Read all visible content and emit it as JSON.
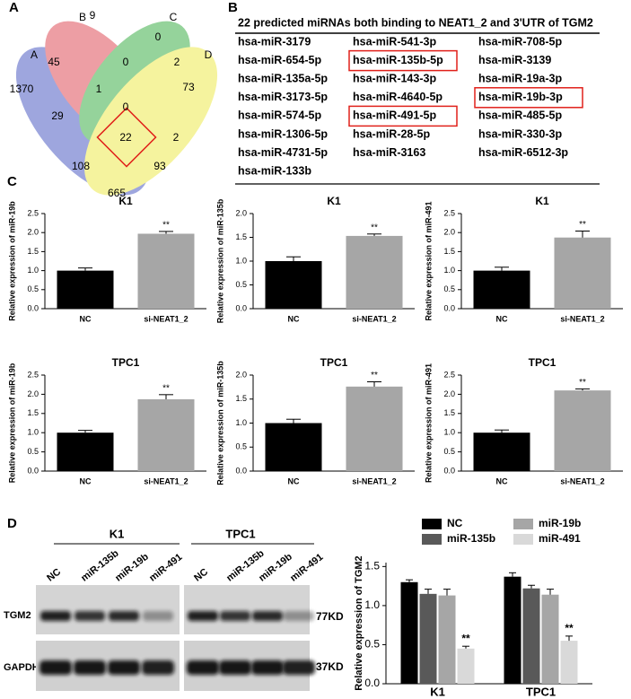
{
  "panel_labels": [
    "A",
    "B",
    "C",
    "D"
  ],
  "venn": {
    "sets": [
      "A",
      "B",
      "C",
      "D"
    ],
    "regions": [
      9,
      0,
      45,
      0,
      2,
      1370,
      1,
      0,
      73,
      29,
      22,
      2,
      108,
      93,
      665
    ]
  },
  "table": {
    "title": "22 predicted miRNAs both binding to  NEAT1_2 and 3'UTR of TGM2",
    "rows": [
      [
        "hsa-miR-3179",
        "hsa-miR-541-3p",
        "hsa-miR-708-5p"
      ],
      [
        "hsa-miR-654-5p",
        "hsa-miR-135b-5p",
        "hsa-miR-3139"
      ],
      [
        "hsa-miR-135a-5p",
        "hsa-miR-143-3p",
        "hsa-miR-19a-3p"
      ],
      [
        "hsa-miR-3173-5p",
        "hsa-miR-4640-5p",
        "hsa-miR-19b-3p"
      ],
      [
        "hsa-miR-574-5p",
        "hsa-miR-491-5p",
        "hsa-miR-485-5p"
      ],
      [
        "hsa-miR-1306-5p",
        "hsa-miR-28-5p",
        "hsa-miR-330-3p"
      ],
      [
        "hsa-miR-4731-5p",
        "hsa-miR-3163",
        "hsa-miR-6512-3p"
      ],
      [
        "hsa-miR-133b"
      ]
    ]
  },
  "blot": {
    "groups": [
      "K1",
      "TPC1"
    ],
    "lanes": [
      "NC",
      "miR-135b",
      "miR-19b",
      "miR-491"
    ],
    "proteins": [
      "TGM2",
      "GAPDH"
    ],
    "sizes": [
      "77KD",
      "37KD"
    ]
  },
  "chart_data": [
    {
      "type": "bar",
      "title": "K1",
      "ylabel": "Relative expression of miR-19b",
      "categories": [
        "NC",
        "si-NEAT1_2"
      ],
      "values": [
        1.0,
        1.97
      ],
      "errors": [
        0.07,
        0.06
      ],
      "significance": [
        null,
        "**"
      ],
      "colors": [
        "#000000",
        "#a6a6a6"
      ],
      "ylim": [
        0,
        2.5
      ],
      "yticks": [
        {
          "value": 0,
          "label": "0.0"
        },
        0.5,
        {
          "value": 1,
          "label": "1.0"
        },
        1.5,
        {
          "value": 2,
          "label": "2.0"
        },
        2.5
      ]
    },
    {
      "type": "bar",
      "title": "K1",
      "ylabel": "Relative expression of miR-135b",
      "categories": [
        "NC",
        "si-NEAT1_2"
      ],
      "values": [
        1.0,
        1.53
      ],
      "errors": [
        0.09,
        0.04
      ],
      "significance": [
        null,
        "**"
      ],
      "colors": [
        "#000000",
        "#a6a6a6"
      ],
      "ylim": [
        0,
        2
      ],
      "yticks": [
        {
          "value": 0,
          "label": "0.0"
        },
        0.5,
        {
          "value": 1,
          "label": "1.0"
        },
        1.5,
        {
          "value": 2,
          "label": "2.0"
        }
      ]
    },
    {
      "type": "bar",
      "title": "K1",
      "ylabel": "Relative expression of miR-491",
      "categories": [
        "NC",
        "si-NEAT1_2"
      ],
      "values": [
        1.0,
        1.87
      ],
      "errors": [
        0.09,
        0.17
      ],
      "significance": [
        null,
        "**"
      ],
      "colors": [
        "#000000",
        "#a6a6a6"
      ],
      "ylim": [
        0,
        2.5
      ],
      "yticks": [
        {
          "value": 0,
          "label": "0.0"
        },
        0.5,
        {
          "value": 1,
          "label": "1.0"
        },
        1.5,
        {
          "value": 2,
          "label": "2.0"
        },
        2.5
      ]
    },
    {
      "type": "bar",
      "title": "TPC1",
      "ylabel": "Relative expression of miR-19b",
      "categories": [
        "NC",
        "si-NEAT1_2"
      ],
      "values": [
        1.0,
        1.87
      ],
      "errors": [
        0.06,
        0.12
      ],
      "significance": [
        null,
        "**"
      ],
      "colors": [
        "#000000",
        "#a6a6a6"
      ],
      "ylim": [
        0,
        2.5
      ],
      "yticks": [
        {
          "value": 0,
          "label": "0.0"
        },
        0.5,
        {
          "value": 1,
          "label": "1.0"
        },
        1.5,
        {
          "value": 2,
          "label": "2.0"
        },
        2.5
      ]
    },
    {
      "type": "bar",
      "title": "TPC1",
      "ylabel": "Relative expression of miR-135b",
      "categories": [
        "NC",
        "si-NEAT1_2"
      ],
      "values": [
        1.0,
        1.76
      ],
      "errors": [
        0.08,
        0.1
      ],
      "significance": [
        null,
        "**"
      ],
      "colors": [
        "#000000",
        "#a6a6a6"
      ],
      "ylim": [
        0,
        2
      ],
      "yticks": [
        {
          "value": 0,
          "label": "0.0"
        },
        0.5,
        {
          "value": 1,
          "label": "1.0"
        },
        1.5,
        {
          "value": 2,
          "label": "2.0"
        }
      ]
    },
    {
      "type": "bar",
      "title": "TPC1",
      "ylabel": "Relative expression of miR-491",
      "categories": [
        "NC",
        "si-NEAT1_2"
      ],
      "values": [
        1.0,
        2.1
      ],
      "errors": [
        0.07,
        0.04
      ],
      "significance": [
        null,
        "**"
      ],
      "colors": [
        "#000000",
        "#a6a6a6"
      ],
      "ylim": [
        0,
        2.5
      ],
      "yticks": [
        {
          "value": 0,
          "label": "0.0"
        },
        0.5,
        {
          "value": 1,
          "label": "1.0"
        },
        1.5,
        {
          "value": 2,
          "label": "2.0"
        },
        2.5
      ]
    },
    {
      "type": "grouped_bar",
      "ylabel": "Relative expression of TGM2",
      "categories": [
        "K1",
        "TPC1"
      ],
      "series": [
        {
          "name": "NC",
          "color": "#000000",
          "values": [
            1.3,
            1.37
          ],
          "errors": [
            0.03,
            0.05
          ]
        },
        {
          "name": "miR-135b",
          "color": "#595959",
          "values": [
            1.15,
            1.22
          ],
          "errors": [
            0.06,
            0.04
          ]
        },
        {
          "name": "miR-19b",
          "color": "#a6a6a6",
          "values": [
            1.13,
            1.14
          ],
          "errors": [
            0.08,
            0.07
          ]
        },
        {
          "name": "miR-491",
          "color": "#d9d9d9",
          "values": [
            0.45,
            0.55
          ],
          "errors": [
            0.03,
            0.06
          ],
          "significance": [
            "**",
            "**"
          ]
        }
      ],
      "ylim": [
        0,
        1.55
      ],
      "yticks": [
        {
          "value": 0,
          "label": "0.0"
        },
        0.5,
        {
          "value": 1,
          "label": "1.0"
        },
        1.5
      ]
    }
  ]
}
